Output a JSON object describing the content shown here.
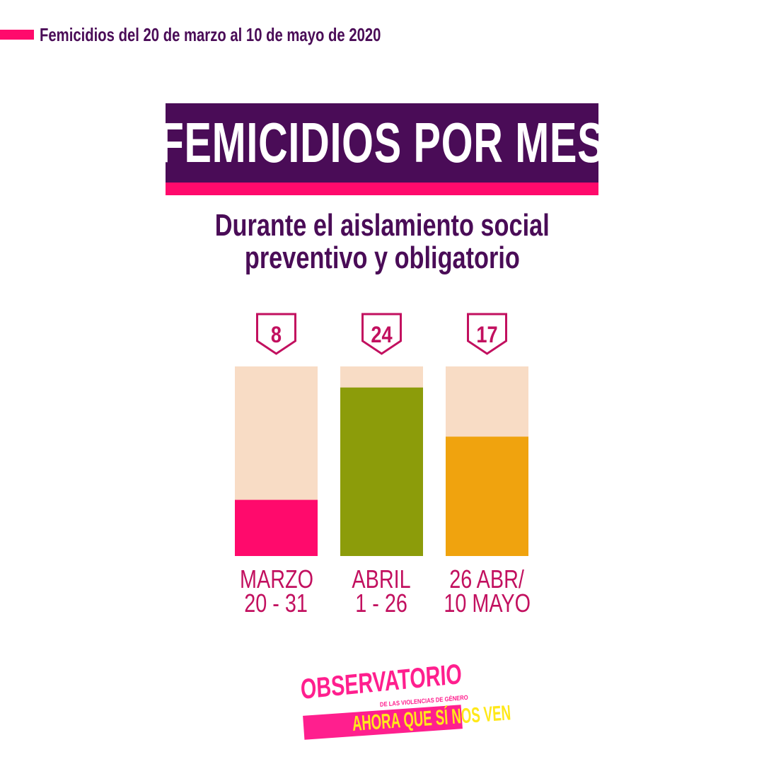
{
  "header": {
    "caption": "Femicidios del 20 de marzo al 10 de mayo de 2020"
  },
  "title": "FEMICIDIOS POR MES",
  "subtitle": {
    "line1": "Durante el aislamiento social",
    "line2": "preventivo y obligatorio"
  },
  "chart_data": {
    "type": "bar",
    "title": "FEMICIDIOS POR MES",
    "categories": [
      "MARZO 20 - 31",
      "ABRIL 1 - 26",
      "26 ABR/ 10 MAYO"
    ],
    "values": [
      8,
      24,
      17
    ],
    "ylim": [
      0,
      27
    ],
    "category_lines": [
      [
        "MARZO",
        "20  -  31"
      ],
      [
        "ABRIL",
        "1  -  26"
      ],
      [
        "26 ABR/",
        "10 MAYO"
      ]
    ],
    "bar_colors": [
      "#ff0a6c",
      "#8c9c0a",
      "#f0a30e"
    ],
    "track_color": "#f8dcc5",
    "label_color": "#c2105f",
    "grid": false,
    "legend": "none"
  },
  "logo": {
    "line1": "OBSERVATORIO",
    "line2": "DE LAS VIOLENCIAS DE GÉNERO",
    "line3": "AHORA QUE SÍ NOS VEN"
  },
  "colors": {
    "primary": "#4a0c57",
    "accent": "#ff0a6c",
    "logo_pink": "#ff1f8e",
    "logo_yellow": "#ffe81a"
  }
}
